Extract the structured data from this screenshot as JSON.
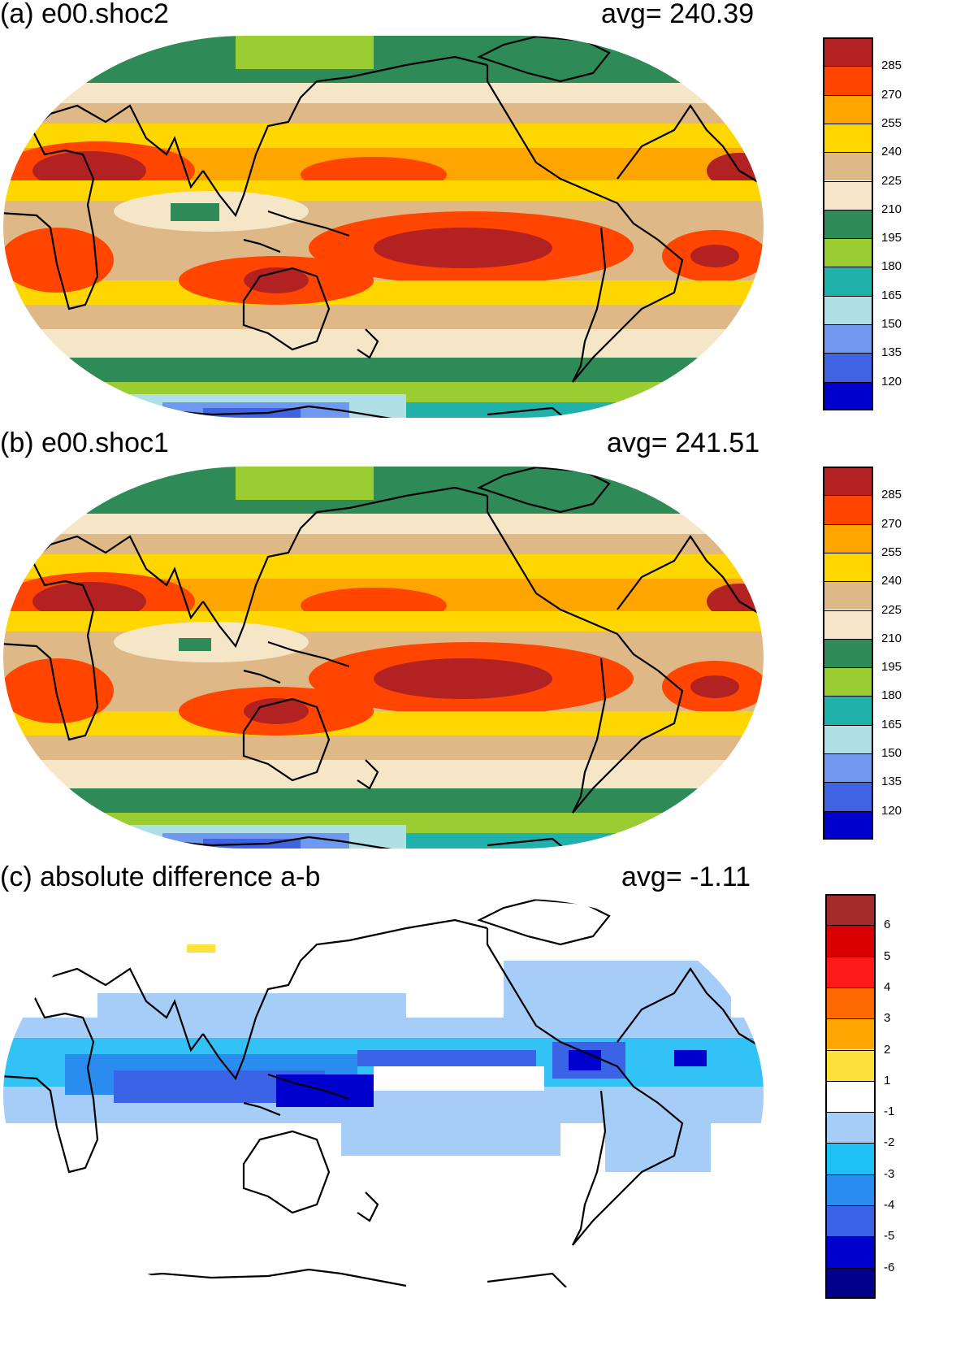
{
  "panels": [
    {
      "id": "a",
      "title": "(a) e00.shoc2",
      "avg_label": "avg=  240.39",
      "colorbar": {
        "levels": [
          "285",
          "270",
          "255",
          "240",
          "225",
          "210",
          "195",
          "180",
          "165",
          "150",
          "135",
          "120"
        ],
        "colors": [
          "#b22222",
          "#ff4500",
          "#ffa500",
          "#ffd700",
          "#deb887",
          "#f5e6c8",
          "#2e8b57",
          "#9acd32",
          "#20b2aa",
          "#b0e0e6",
          "#6f98f0",
          "#3f63e1",
          "#0000cd"
        ]
      }
    },
    {
      "id": "b",
      "title": "(b) e00.shoc1",
      "avg_label": "avg=  241.51",
      "colorbar": {
        "levels": [
          "285",
          "270",
          "255",
          "240",
          "225",
          "210",
          "195",
          "180",
          "165",
          "150",
          "135",
          "120"
        ],
        "colors": [
          "#b22222",
          "#ff4500",
          "#ffa500",
          "#ffd700",
          "#deb887",
          "#f5e6c8",
          "#2e8b57",
          "#9acd32",
          "#20b2aa",
          "#b0e0e6",
          "#6f98f0",
          "#3f63e1",
          "#0000cd"
        ]
      }
    },
    {
      "id": "c",
      "title": "(c) absolute difference a-b",
      "avg_label": "avg=   -1.11",
      "colorbar": {
        "levels": [
          "6",
          "5",
          "4",
          "3",
          "2",
          "1",
          "-1",
          "-2",
          "-3",
          "-4",
          "-5",
          "-6"
        ],
        "colors": [
          "#a52a2a",
          "#d90000",
          "#ff1a1a",
          "#ff6a00",
          "#ffa500",
          "#fde03a",
          "#ffffff",
          "#a6cdf7",
          "#1ec0f5",
          "#2b8cf0",
          "#3a63e6",
          "#0000cd",
          "#00008b"
        ]
      }
    }
  ],
  "chart_data": [
    {
      "type": "heatmap",
      "title": "(a) e00.shoc2",
      "annotation": "avg=  240.39",
      "projection": "Robinson global, centered on Pacific",
      "colorbar_levels": [
        285,
        270,
        255,
        240,
        225,
        210,
        195,
        180,
        165,
        150,
        135,
        120
      ],
      "value_range": [
        120,
        300
      ],
      "zonal_pattern": [
        {
          "band": "arctic",
          "value_range": [
            180,
            210
          ]
        },
        {
          "band": "northern mid-latitudes",
          "value_range": [
            210,
            240
          ]
        },
        {
          "band": "subtropics/tropics",
          "value_range": [
            240,
            300
          ]
        },
        {
          "band": "southern mid-latitudes",
          "value_range": [
            210,
            240
          ]
        },
        {
          "band": "southern ocean",
          "value_range": [
            180,
            210
          ]
        },
        {
          "band": "antarctica",
          "value_range": [
            120,
            165
          ]
        }
      ]
    },
    {
      "type": "heatmap",
      "title": "(b) e00.shoc1",
      "annotation": "avg=  241.51",
      "projection": "Robinson global, centered on Pacific",
      "colorbar_levels": [
        285,
        270,
        255,
        240,
        225,
        210,
        195,
        180,
        165,
        150,
        135,
        120
      ],
      "value_range": [
        120,
        300
      ]
    },
    {
      "type": "heatmap",
      "title": "(c) absolute difference a-b",
      "annotation": "avg=   -1.11",
      "projection": "Robinson global, centered on Pacific",
      "colorbar_levels": [
        6,
        5,
        4,
        3,
        2,
        1,
        -1,
        -2,
        -3,
        -4,
        -5,
        -6
      ],
      "value_range": [
        -6,
        6
      ],
      "pattern": "negative differences (-1 to -6) concentrated in the tropical band, strongest over the western Pacific warm pool and Central America; near zero at high latitudes"
    }
  ]
}
